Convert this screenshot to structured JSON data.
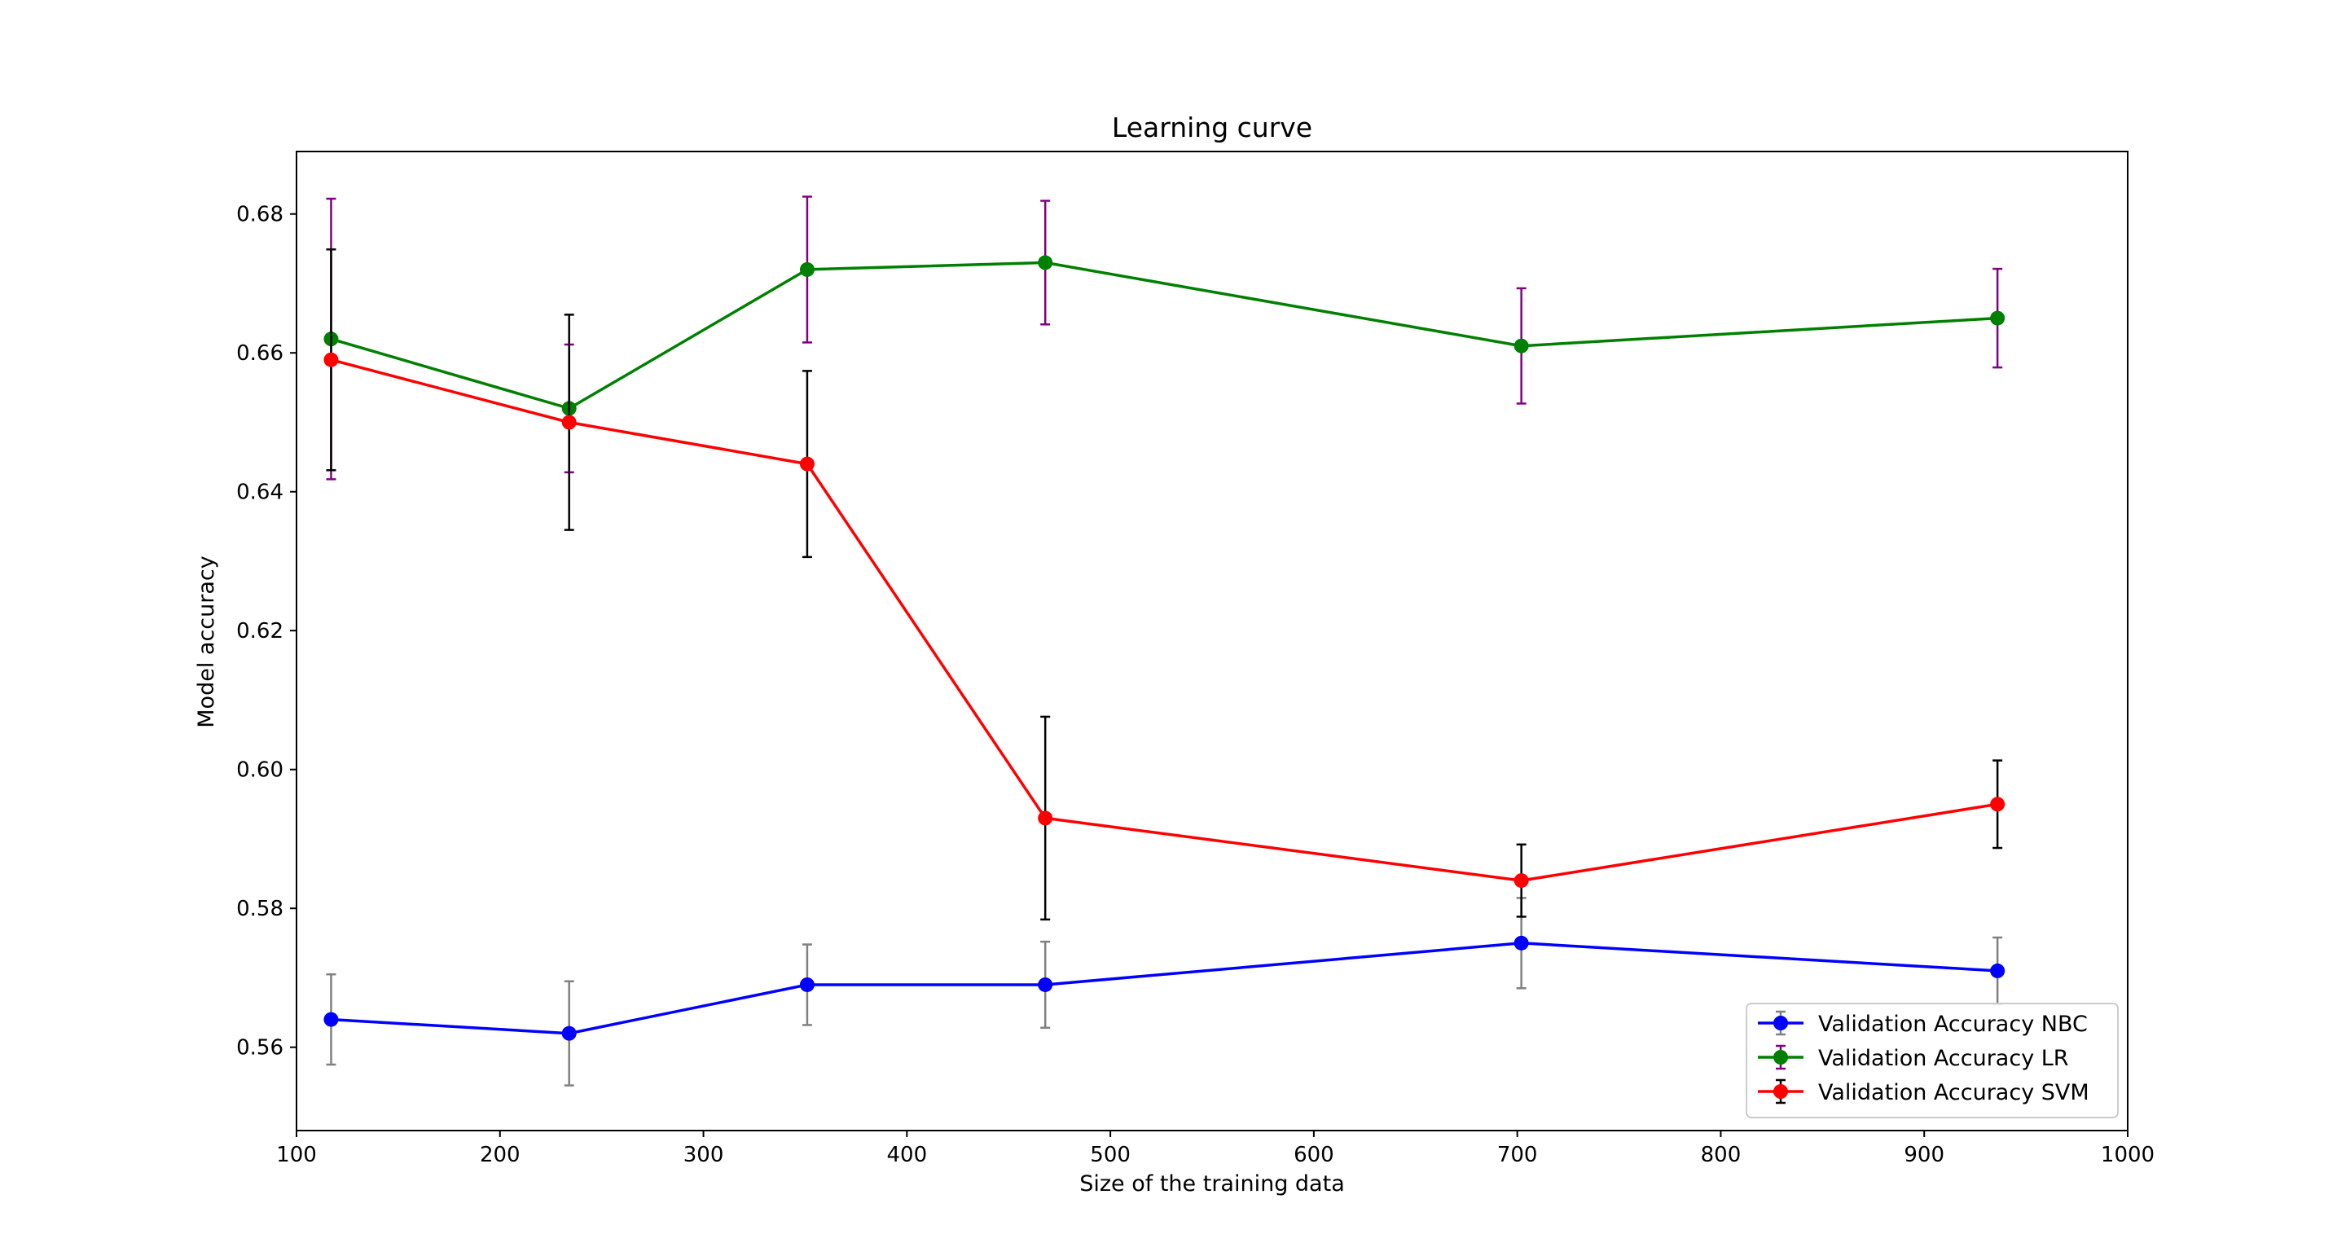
{
  "chart_data": {
    "type": "line",
    "title": "Learning curve",
    "xlabel": "Size of the training data",
    "ylabel": "Model accuracy",
    "xlim": [
      100,
      1000
    ],
    "ylim": [
      0.548,
      0.689
    ],
    "x_ticks": [
      100,
      200,
      300,
      400,
      500,
      600,
      700,
      800,
      900,
      1000
    ],
    "y_ticks": [
      0.56,
      0.58,
      0.6,
      0.62,
      0.64,
      0.66,
      0.68
    ],
    "y_tick_labels": [
      "0.56",
      "0.58",
      "0.60",
      "0.62",
      "0.64",
      "0.66",
      "0.68"
    ],
    "grid": false,
    "legend_position": "lower-right",
    "x": [
      117,
      234,
      351,
      468,
      702,
      936
    ],
    "series": [
      {
        "name": "Validation Accuracy NBC",
        "values": [
          0.564,
          0.562,
          0.569,
          0.569,
          0.575,
          0.571
        ],
        "errors": [
          0.0065,
          0.0075,
          0.0058,
          0.0062,
          0.0065,
          0.0048
        ],
        "color": "#0000ff",
        "error_color": "#808080"
      },
      {
        "name": "Validation Accuracy LR",
        "values": [
          0.662,
          0.652,
          0.672,
          0.673,
          0.661,
          0.665
        ],
        "errors": [
          0.0202,
          0.0092,
          0.0105,
          0.0089,
          0.0083,
          0.0071
        ],
        "color": "#008000",
        "error_color": "#800080"
      },
      {
        "name": "Validation Accuracy SVM",
        "values": [
          0.659,
          0.65,
          0.644,
          0.593,
          0.584,
          0.595
        ],
        "errors": [
          0.0159,
          0.0155,
          0.0134,
          0.0146,
          0.0052,
          0.0063
        ],
        "color": "#ff0000",
        "error_color": "#000000"
      }
    ]
  }
}
